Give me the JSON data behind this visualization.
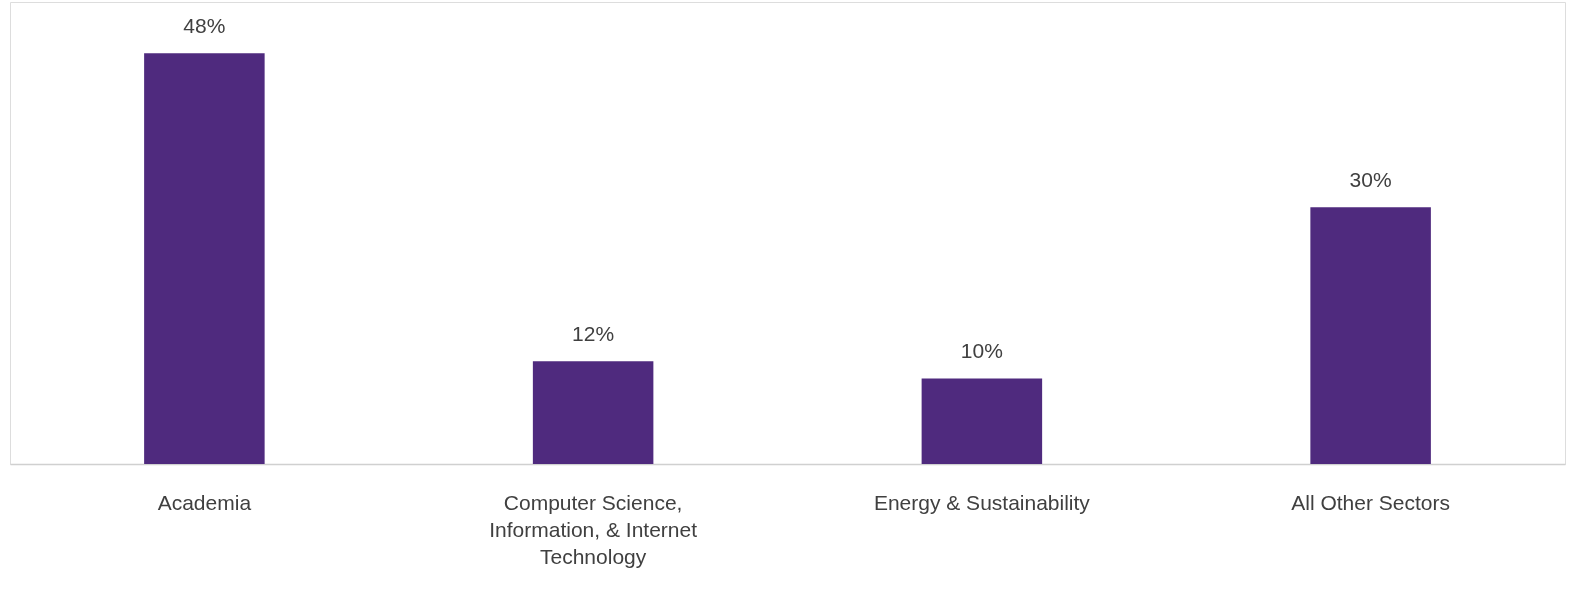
{
  "chart_data": {
    "type": "bar",
    "categories": [
      "Academia",
      "Computer Science, Information, & Internet Technology",
      "Energy & Sustainability",
      "All Other Sectors"
    ],
    "values": [
      48,
      12,
      10,
      30
    ],
    "value_labels": [
      "48%",
      "12%",
      "10%",
      "30%"
    ],
    "color": "#4f2a7e"
  }
}
